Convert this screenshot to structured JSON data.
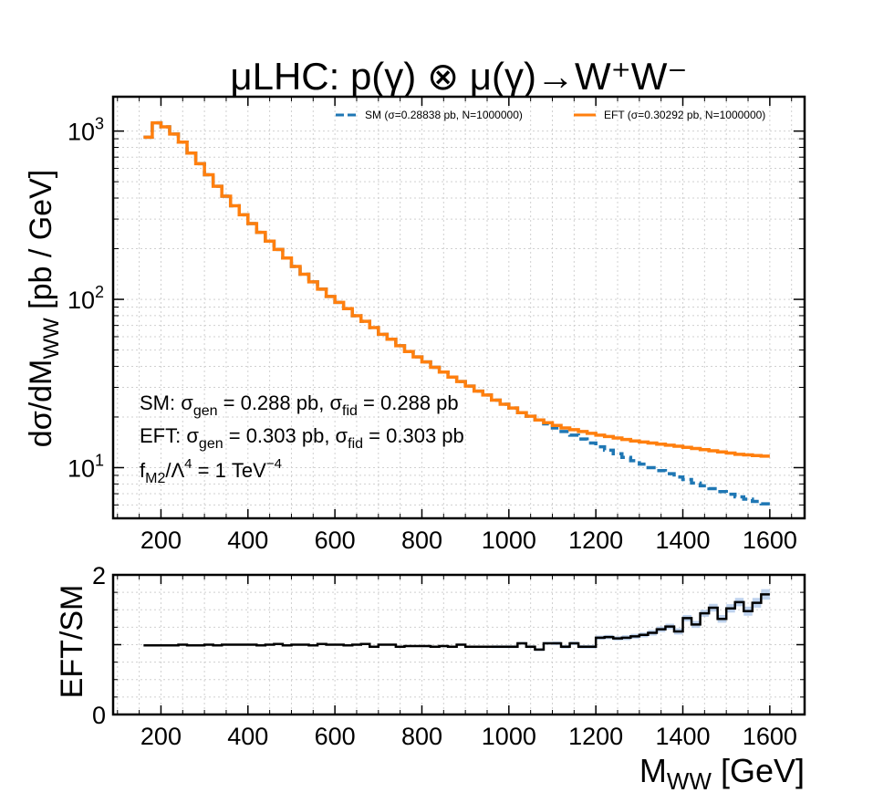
{
  "chart_data": [
    {
      "panel": "main",
      "type": "line",
      "step": true,
      "title": "μLHC: p(γ) ⊗ μ(γ)→W⁺W⁻",
      "ylabel": {
        "main": "dσ/dM",
        "sub": "WW",
        "unit": "  [pb / GeV]"
      },
      "xlim": [
        90,
        1680
      ],
      "ylim": [
        5,
        1600
      ],
      "yscale": "log",
      "grid": true,
      "legend_position": "top-right",
      "x_ticks": [
        200,
        400,
        600,
        800,
        1000,
        1200,
        1400,
        1600
      ],
      "y_ticks": [
        {
          "value": 10,
          "base": "10",
          "exp": "1"
        },
        {
          "value": 100,
          "base": "10",
          "exp": "2"
        },
        {
          "value": 1000,
          "base": "10",
          "exp": "3"
        }
      ],
      "bin_edges": [
        160,
        180,
        200,
        220,
        240,
        260,
        280,
        300,
        320,
        340,
        360,
        380,
        400,
        420,
        440,
        460,
        480,
        500,
        520,
        540,
        560,
        580,
        600,
        620,
        640,
        660,
        680,
        700,
        720,
        740,
        760,
        780,
        800,
        820,
        840,
        860,
        880,
        900,
        920,
        940,
        960,
        980,
        1000,
        1020,
        1040,
        1060,
        1080,
        1100,
        1120,
        1140,
        1160,
        1180,
        1200,
        1220,
        1240,
        1260,
        1280,
        1300,
        1320,
        1340,
        1360,
        1380,
        1400,
        1420,
        1440,
        1460,
        1480,
        1500,
        1520,
        1540,
        1560,
        1580,
        1600
      ],
      "series": [
        {
          "name": "SM (σ=0.28838 pb, N=1000000)",
          "color": "#1f77b4",
          "style": "dashed",
          "values": [
            920,
            1120,
            1060,
            960,
            860,
            740,
            640,
            550,
            470,
            410,
            360,
            318,
            282,
            250,
            222,
            198,
            176,
            157,
            141,
            127,
            115,
            104,
            96,
            88,
            80,
            74,
            68,
            62,
            58,
            53,
            49,
            45.5,
            42.5,
            39.5,
            37,
            34.5,
            32.5,
            30.5,
            28.5,
            27,
            25.2,
            23.8,
            22.6,
            21.2,
            20.2,
            19.2,
            18.2,
            17.2,
            16.4,
            15.6,
            14.8,
            14.0,
            13.3,
            12.7,
            12.1,
            11.5,
            11.0,
            10.5,
            10.0,
            9.6,
            9.2,
            8.8,
            8.5,
            8.1,
            7.8,
            7.5,
            7.2,
            6.95,
            6.7,
            6.5,
            6.3,
            6.1
          ]
        },
        {
          "name": "EFT (σ=0.30292 pb, N=1000000)",
          "color": "#ff7f0e",
          "style": "solid",
          "values": [
            920,
            1120,
            1060,
            960,
            860,
            740,
            640,
            550,
            470,
            410,
            360,
            318,
            282,
            250,
            222,
            198,
            176,
            157,
            141,
            127,
            115,
            104,
            96,
            88,
            80,
            74,
            68,
            62,
            58,
            53,
            49,
            45.5,
            42.5,
            39.5,
            37,
            34.5,
            32.5,
            30.5,
            28.5,
            27,
            25.2,
            23.8,
            22.6,
            21.2,
            20.2,
            19.2,
            18.5,
            17.8,
            17.2,
            16.8,
            16.4,
            16.0,
            15.6,
            15.3,
            15.0,
            14.7,
            14.4,
            14.2,
            14.0,
            13.8,
            13.6,
            13.4,
            13.2,
            13.0,
            12.8,
            12.6,
            12.4,
            12.2,
            12.0,
            11.9,
            11.8,
            11.7
          ]
        }
      ],
      "annotations": {
        "sm": {
          "label": "SM:  σ",
          "gen_sub": "gen",
          "gen_value": " = 0.288 pb,  σ",
          "fid_sub": "fid",
          "fid_value": " = 0.288 pb"
        },
        "eft": {
          "label": "EFT: σ",
          "gen_sub": "gen",
          "gen_value": " = 0.303 pb,  σ",
          "fid_sub": "fid",
          "fid_value": " = 0.303 pb"
        },
        "coupling": {
          "f": "f",
          "f_sub": "M2",
          "lambda": "/Λ",
          "lambda_exp": "4",
          "value": " = 1 TeV",
          "value_exp": "−4"
        }
      }
    },
    {
      "panel": "ratio",
      "type": "line",
      "step": true,
      "ylabel": "EFT/SM",
      "xlabel": {
        "main": "M",
        "sub": "WW",
        "unit": "  [GeV]"
      },
      "xlim": [
        90,
        1680
      ],
      "ylim": [
        0,
        2
      ],
      "grid": true,
      "x_ticks": [
        200,
        400,
        600,
        800,
        1000,
        1200,
        1400,
        1600
      ],
      "y_ticks": [
        0,
        2
      ],
      "band_color": "#aec7e8",
      "line_color": "#000000",
      "bin_edges": [
        160,
        180,
        200,
        220,
        240,
        260,
        280,
        300,
        320,
        340,
        360,
        380,
        400,
        420,
        440,
        460,
        480,
        500,
        520,
        540,
        560,
        580,
        600,
        620,
        640,
        660,
        680,
        700,
        720,
        740,
        760,
        780,
        800,
        820,
        840,
        860,
        880,
        900,
        920,
        940,
        960,
        980,
        1000,
        1020,
        1040,
        1060,
        1080,
        1100,
        1120,
        1140,
        1160,
        1180,
        1200,
        1220,
        1240,
        1260,
        1280,
        1300,
        1320,
        1340,
        1360,
        1380,
        1400,
        1420,
        1440,
        1460,
        1480,
        1500,
        1520,
        1540,
        1560,
        1580,
        1600
      ],
      "values": [
        0.99,
        0.99,
        0.99,
        0.99,
        1.0,
        0.99,
        0.99,
        1.0,
        0.99,
        1.0,
        1.0,
        1.0,
        1.0,
        0.99,
        1.0,
        1.01,
        0.99,
        1.0,
        1.0,
        0.99,
        1.01,
        1.0,
        1.0,
        0.99,
        1.0,
        1.01,
        0.97,
        1.0,
        1.0,
        0.97,
        0.98,
        0.98,
        0.98,
        0.97,
        0.98,
        0.97,
        1.0,
        0.97,
        0.97,
        0.97,
        0.97,
        0.97,
        0.97,
        1.02,
        0.97,
        0.93,
        1.02,
        1.02,
        0.97,
        1.02,
        0.97,
        0.97,
        1.1,
        1.11,
        1.09,
        1.1,
        1.12,
        1.14,
        1.17,
        1.22,
        1.26,
        1.19,
        1.38,
        1.29,
        1.45,
        1.53,
        1.37,
        1.52,
        1.61,
        1.48,
        1.6,
        1.72
      ],
      "band_halfwidth": [
        0.01,
        0.01,
        0.01,
        0.01,
        0.01,
        0.01,
        0.01,
        0.01,
        0.01,
        0.01,
        0.01,
        0.01,
        0.01,
        0.01,
        0.01,
        0.01,
        0.01,
        0.01,
        0.01,
        0.01,
        0.01,
        0.01,
        0.01,
        0.01,
        0.01,
        0.01,
        0.01,
        0.01,
        0.01,
        0.01,
        0.01,
        0.01,
        0.015,
        0.015,
        0.015,
        0.015,
        0.015,
        0.015,
        0.015,
        0.015,
        0.02,
        0.02,
        0.02,
        0.02,
        0.02,
        0.02,
        0.02,
        0.025,
        0.025,
        0.025,
        0.025,
        0.025,
        0.03,
        0.03,
        0.03,
        0.035,
        0.035,
        0.035,
        0.04,
        0.04,
        0.04,
        0.045,
        0.045,
        0.05,
        0.05,
        0.055,
        0.055,
        0.06,
        0.06,
        0.065,
        0.07,
        0.075
      ]
    }
  ]
}
